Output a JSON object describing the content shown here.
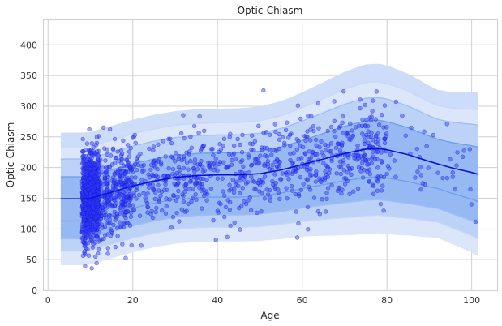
{
  "chart_data": {
    "type": "scatter",
    "title": "Optic-Chiasm",
    "xlabel": "Age",
    "ylabel": "Optic-Chiasm",
    "xlim": [
      -1,
      106
    ],
    "ylim": [
      0,
      440
    ],
    "xticks": [
      0,
      20,
      40,
      60,
      80,
      100
    ],
    "yticks": [
      0,
      50,
      100,
      150,
      200,
      250,
      300,
      350,
      400
    ],
    "grid": true,
    "median_curve": {
      "x": [
        3,
        5,
        8,
        10,
        12,
        15,
        18,
        20,
        25,
        30,
        35,
        40,
        45,
        50,
        55,
        60,
        65,
        70,
        75,
        78,
        80,
        85,
        90,
        95,
        100,
        101.5
      ],
      "y": [
        149,
        149,
        149,
        150,
        154,
        160,
        166,
        170,
        178,
        184,
        187,
        188,
        188,
        190,
        196,
        205,
        214,
        223,
        230,
        231,
        229,
        221,
        210,
        200,
        192,
        189
      ]
    },
    "centile_offsets": [
      -108,
      -85,
      -65,
      -36,
      36,
      65,
      85,
      108
    ],
    "band_widen": {
      "center_x": 77,
      "spread": 16,
      "amount": 0.28,
      "tail_start": 92,
      "tail_rate": 0.022
    },
    "band_colors": [
      "#dbe6fb",
      "#bcd2f7",
      "#97b9f3",
      "#97b9f3",
      "#bcd2f7",
      "#dbe6fb",
      "#cddcf8"
    ],
    "line_colors": [
      "#c6d6f7",
      "#9fbdf2",
      "#6f9ce9",
      "#6f9ce9",
      "#9fbdf2",
      "#c6d6f7"
    ],
    "points_color": "#2f3cff",
    "curve_color": "#0a12d8",
    "points": {
      "n": 1900,
      "seed": 17,
      "age_groups": [
        {
          "min": 8,
          "max": 12,
          "weight": 0.42
        },
        {
          "min": 12,
          "max": 20,
          "weight": 0.18
        },
        {
          "min": 20,
          "max": 80,
          "weight": 0.38
        },
        {
          "min": 80,
          "max": 101,
          "weight": 0.02
        }
      ],
      "spread_sd": 33
    }
  }
}
